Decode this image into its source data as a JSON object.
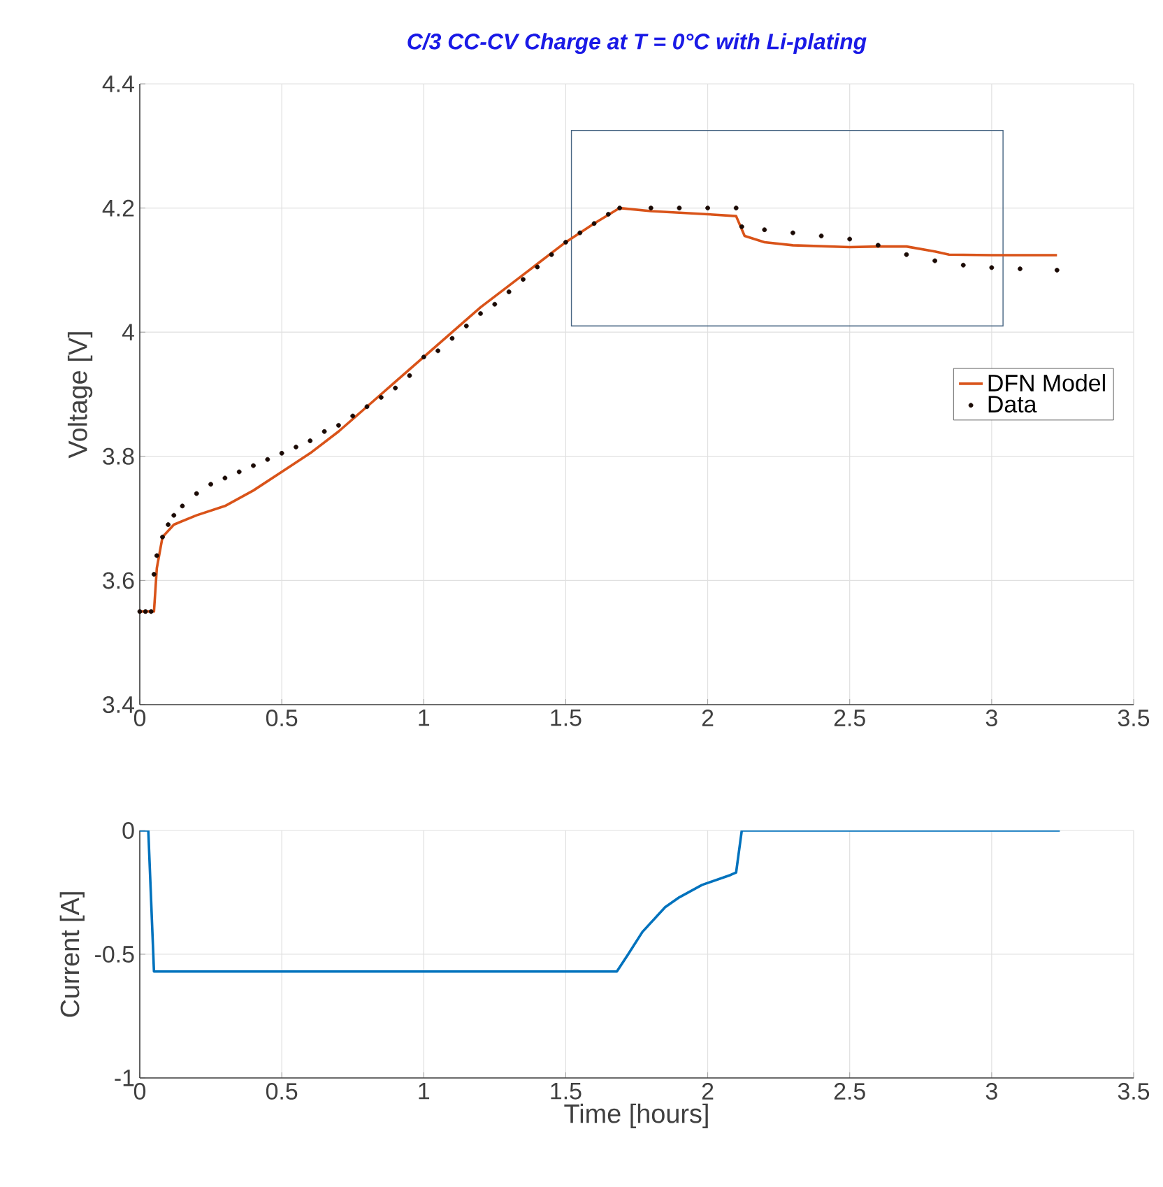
{
  "chart_data": [
    {
      "type": "line",
      "title": "C/3 CC-CV Charge at T = 0°C with Li-plating",
      "ylabel": "Voltage [V]",
      "xlim": [
        0,
        3.5
      ],
      "ylim": [
        3.4,
        4.4
      ],
      "xticks": [
        0,
        0.5,
        1,
        1.5,
        2,
        2.5,
        3,
        3.5
      ],
      "yticks": [
        3.4,
        3.6,
        3.8,
        4,
        4.2,
        4.4
      ],
      "grid": true,
      "legend": "right",
      "series": [
        {
          "name": "DFN Model",
          "type": "line",
          "color": "#d95319",
          "marker": "none",
          "x": [
            0,
            0.05,
            0.06,
            0.08,
            0.12,
            0.2,
            0.3,
            0.4,
            0.5,
            0.6,
            0.7,
            0.8,
            0.9,
            1.0,
            1.1,
            1.2,
            1.3,
            1.4,
            1.5,
            1.6,
            1.69,
            1.8,
            2.0,
            2.1,
            2.13,
            2.2,
            2.3,
            2.5,
            2.6,
            2.7,
            2.8,
            2.85,
            3.0,
            3.23
          ],
          "values": [
            3.55,
            3.55,
            3.62,
            3.67,
            3.69,
            3.705,
            3.72,
            3.745,
            3.775,
            3.805,
            3.84,
            3.88,
            3.92,
            3.96,
            4.0,
            4.04,
            4.075,
            4.11,
            4.145,
            4.175,
            4.2,
            4.195,
            4.19,
            4.187,
            4.155,
            4.145,
            4.14,
            4.137,
            4.138,
            4.138,
            4.13,
            4.125,
            4.124,
            4.124
          ]
        },
        {
          "name": "Data",
          "type": "scatter",
          "color": "#1a0a05",
          "marker": "circle",
          "x": [
            0,
            0.02,
            0.04,
            0.05,
            0.06,
            0.08,
            0.1,
            0.12,
            0.15,
            0.2,
            0.25,
            0.3,
            0.35,
            0.4,
            0.45,
            0.5,
            0.55,
            0.6,
            0.65,
            0.7,
            0.75,
            0.8,
            0.85,
            0.9,
            0.95,
            1.0,
            1.05,
            1.1,
            1.15,
            1.2,
            1.25,
            1.3,
            1.35,
            1.4,
            1.45,
            1.5,
            1.55,
            1.6,
            1.65,
            1.69,
            1.8,
            1.9,
            2.0,
            2.1,
            2.12,
            2.2,
            2.3,
            2.4,
            2.5,
            2.6,
            2.7,
            2.8,
            2.9,
            3.0,
            3.1,
            3.23
          ],
          "values": [
            3.55,
            3.55,
            3.55,
            3.61,
            3.64,
            3.67,
            3.69,
            3.705,
            3.72,
            3.74,
            3.755,
            3.765,
            3.775,
            3.785,
            3.795,
            3.805,
            3.815,
            3.825,
            3.84,
            3.85,
            3.865,
            3.88,
            3.895,
            3.91,
            3.93,
            3.96,
            3.97,
            3.99,
            4.01,
            4.03,
            4.045,
            4.065,
            4.085,
            4.105,
            4.125,
            4.145,
            4.16,
            4.175,
            4.19,
            4.2,
            4.2,
            4.2,
            4.2,
            4.2,
            4.17,
            4.165,
            4.16,
            4.155,
            4.15,
            4.14,
            4.125,
            4.115,
            4.108,
            4.104,
            4.102,
            4.1
          ]
        }
      ]
    },
    {
      "type": "line",
      "xlabel": "Time [hours]",
      "ylabel": "Current [A]",
      "xlim": [
        0,
        3.5
      ],
      "ylim": [
        -1,
        0
      ],
      "xticks": [
        0,
        0.5,
        1,
        1.5,
        2,
        2.5,
        3,
        3.5
      ],
      "yticks": [
        -1,
        -0.5,
        0
      ],
      "grid": true,
      "series": [
        {
          "color": "#0072bd",
          "x": [
            0,
            0.03,
            0.05,
            1.68,
            1.72,
            1.77,
            1.85,
            1.9,
            1.98,
            2.08,
            2.1,
            2.12,
            3.24
          ],
          "values": [
            0,
            0,
            -0.57,
            -0.57,
            -0.5,
            -0.41,
            -0.31,
            -0.27,
            -0.22,
            -0.18,
            -0.17,
            0,
            0
          ]
        }
      ]
    }
  ]
}
